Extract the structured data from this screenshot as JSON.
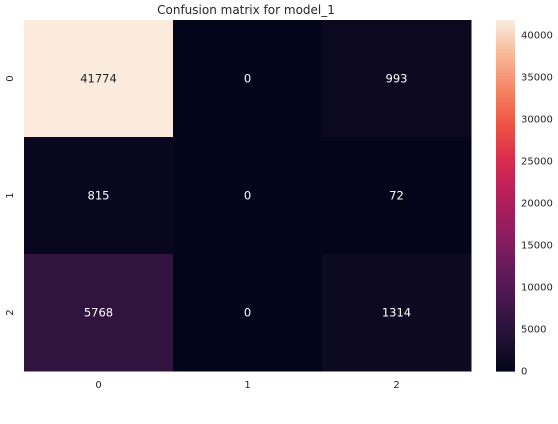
{
  "chart_data": {
    "type": "heatmap",
    "title": "Confusion matrix for model_1",
    "xlabel": "",
    "ylabel": "",
    "x_categories": [
      "0",
      "1",
      "2"
    ],
    "y_categories": [
      "0",
      "1",
      "2"
    ],
    "values": [
      [
        41774,
        0,
        993
      ],
      [
        815,
        0,
        72
      ],
      [
        5768,
        0,
        1314
      ]
    ],
    "colormap": "rocket",
    "colorbar": {
      "vmin": 0,
      "vmax": 41774,
      "ticks": [
        0,
        5000,
        10000,
        15000,
        20000,
        25000,
        30000,
        35000,
        40000
      ],
      "tick_labels": [
        "0",
        "5000",
        "10000",
        "15000",
        "20000",
        "25000",
        "30000",
        "35000",
        "40000"
      ]
    },
    "annotations": true,
    "grid": false
  }
}
